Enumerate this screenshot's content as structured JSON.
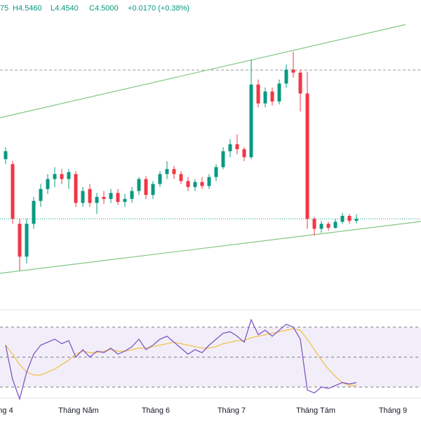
{
  "chart_data": {
    "type": "candlestick",
    "header": [
      "75",
      "H4.5460",
      "L4.4540",
      "C4.5000",
      "+0.0170 (+0.38%)"
    ],
    "x_labels": [
      "ng 4",
      "Tháng Năm",
      "Tháng 6",
      "Tháng 7",
      "Tháng Tám",
      "Tháng 9"
    ],
    "ylim": [
      3.6,
      6.7
    ],
    "up_color": "#089981",
    "down_color": "#f23645",
    "open": [
      5.1,
      5.05,
      4.45,
      4.12,
      4.45,
      4.68,
      4.8,
      4.9,
      4.95,
      4.9,
      4.95,
      4.66,
      4.8,
      4.66,
      4.72,
      4.7,
      4.76,
      4.67,
      4.7,
      4.78,
      4.9,
      4.74,
      4.85,
      4.95,
      5.0,
      4.95,
      4.88,
      4.82,
      4.87,
      4.83,
      4.92,
      5.02,
      5.18,
      5.25,
      5.2,
      5.12,
      5.85,
      5.66,
      5.78,
      5.68,
      5.86,
      6.0,
      5.97,
      5.76,
      4.5,
      4.4,
      4.45,
      4.41,
      4.47,
      4.53,
      4.48
    ],
    "high": [
      5.22,
      5.08,
      4.5,
      4.5,
      4.72,
      4.85,
      4.95,
      5.02,
      5.0,
      5.0,
      4.98,
      4.82,
      4.85,
      4.76,
      4.78,
      4.8,
      4.8,
      4.75,
      4.82,
      4.92,
      4.93,
      4.88,
      4.98,
      5.08,
      5.03,
      4.98,
      4.92,
      4.9,
      4.92,
      4.95,
      5.05,
      5.22,
      5.3,
      5.35,
      5.22,
      6.1,
      5.9,
      5.82,
      5.82,
      5.9,
      6.05,
      6.18,
      6.0,
      5.98,
      4.52,
      4.48,
      4.47,
      4.5,
      4.56,
      4.55,
      4.546
    ],
    "low": [
      5.05,
      4.45,
      3.98,
      4.05,
      4.4,
      4.62,
      4.75,
      4.82,
      4.85,
      4.8,
      4.62,
      4.62,
      4.62,
      4.55,
      4.65,
      4.66,
      4.64,
      4.62,
      4.66,
      4.74,
      4.7,
      4.7,
      4.82,
      4.9,
      4.9,
      4.85,
      4.78,
      4.78,
      4.8,
      4.8,
      4.88,
      5.0,
      5.12,
      5.15,
      5.08,
      5.1,
      5.62,
      5.62,
      5.64,
      5.65,
      5.82,
      5.92,
      5.58,
      4.4,
      4.33,
      4.36,
      4.38,
      4.4,
      4.45,
      4.45,
      4.454
    ],
    "close": [
      5.18,
      4.5,
      4.12,
      4.45,
      4.68,
      4.8,
      4.9,
      4.95,
      4.9,
      4.97,
      4.66,
      4.78,
      4.66,
      4.72,
      4.7,
      4.76,
      4.67,
      4.7,
      4.78,
      4.9,
      4.74,
      4.85,
      4.95,
      5.0,
      4.95,
      4.88,
      4.82,
      4.87,
      4.83,
      4.92,
      5.02,
      5.18,
      5.25,
      5.2,
      5.12,
      5.85,
      5.66,
      5.78,
      5.68,
      5.86,
      6.0,
      5.97,
      5.76,
      4.5,
      4.4,
      4.45,
      4.41,
      4.47,
      4.53,
      4.48,
      4.5
    ],
    "rsi": {
      "ylim": [
        24,
        77
      ],
      "levels": [
        30,
        50,
        70
      ],
      "color": "#7e57c2",
      "ma_color": "#f2c14e",
      "values": [
        58,
        35,
        22,
        40,
        52,
        58,
        60,
        62,
        59,
        61,
        50,
        55,
        50,
        54,
        53,
        56,
        52,
        54,
        57,
        62,
        55,
        58,
        62,
        64,
        60,
        56,
        52,
        55,
        53,
        58,
        62,
        66,
        67,
        64,
        60,
        75,
        65,
        68,
        64,
        68,
        72,
        70,
        62,
        28,
        26,
        30,
        29,
        31,
        33,
        32,
        33
      ],
      "ma": [
        58,
        52,
        45,
        40,
        38,
        38,
        40,
        42,
        45,
        48,
        52,
        54,
        53,
        53,
        54,
        55,
        54,
        54,
        55,
        56,
        56,
        57,
        58,
        59,
        60,
        59,
        58,
        57,
        56,
        56,
        57,
        59,
        60,
        61,
        61,
        63,
        64,
        65,
        66,
        67,
        68,
        69,
        68,
        62,
        55,
        48,
        42,
        37,
        33,
        31,
        31
      ]
    }
  }
}
